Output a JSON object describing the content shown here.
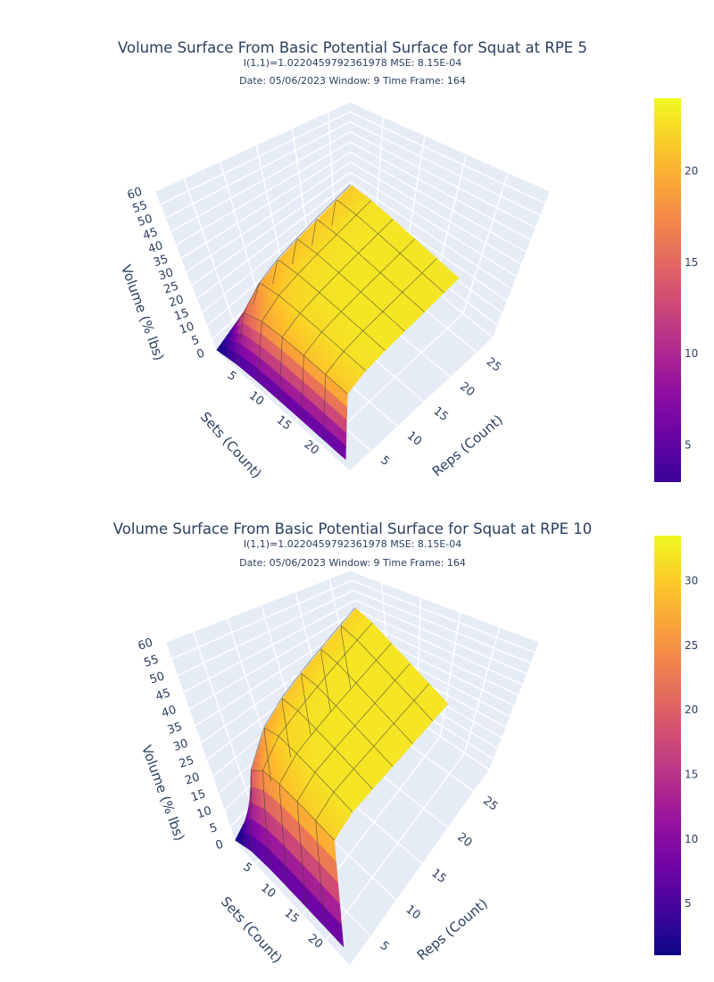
{
  "chart_data": [
    {
      "type": "surface",
      "title": "Volume Surface From Basic Potential Surface for Squat at RPE 5",
      "subtitle1": "I(1,1)=1.0220459792361978  MSE: 8.15E-04",
      "subtitle2": "Date: 05/06/2023  Window: 9  Time Frame: 164",
      "xlabel": "Sets (Count)",
      "ylabel": "Reps (Count)",
      "zlabel": "Volume (% lbs)",
      "xticks": [
        "5",
        "10",
        "15",
        "20"
      ],
      "yticks": [
        "5",
        "10",
        "15",
        "20",
        "25"
      ],
      "zticks": [
        "0",
        "5",
        "10",
        "15",
        "20",
        "25",
        "30",
        "35",
        "40",
        "45",
        "50",
        "55",
        "60"
      ],
      "xlim": [
        1,
        25
      ],
      "ylim": [
        1,
        28
      ],
      "zlim": [
        0,
        60
      ],
      "colorbar": {
        "ticks": [
          5,
          10,
          15,
          20
        ],
        "range": [
          1,
          24
        ]
      },
      "colorscale": "plasma",
      "z_plateau": 23,
      "surface_grid": {
        "sets": [
          1,
          5,
          9,
          13,
          17,
          21,
          25
        ],
        "reps": [
          1,
          5,
          9,
          13,
          17,
          21,
          25,
          28
        ],
        "volume": [
          [
            1.0,
            3.0,
            3.8,
            4.0,
            4.1,
            4.1,
            4.1,
            4.1
          ],
          [
            3.0,
            15.0,
            19.0,
            20.5,
            21.0,
            21.2,
            21.3,
            21.3
          ],
          [
            3.8,
            19.0,
            21.5,
            22.2,
            22.5,
            22.6,
            22.7,
            22.7
          ],
          [
            4.0,
            20.5,
            22.2,
            22.7,
            22.9,
            23.0,
            23.0,
            23.0
          ],
          [
            4.1,
            21.0,
            22.5,
            22.9,
            23.0,
            23.0,
            23.0,
            23.0
          ],
          [
            4.1,
            21.2,
            22.6,
            23.0,
            23.0,
            23.0,
            23.0,
            23.0
          ],
          [
            4.1,
            21.3,
            22.7,
            23.0,
            23.0,
            23.0,
            23.0,
            23.0
          ]
        ]
      }
    },
    {
      "type": "surface",
      "title": "Volume Surface From Basic Potential Surface for Squat at RPE 10",
      "subtitle1": "I(1,1)=1.0220459792361978  MSE: 8.15E-04",
      "subtitle2": "Date: 05/06/2023  Window: 9  Time Frame: 164",
      "xlabel": "Sets (Count)",
      "ylabel": "Reps (Count)",
      "zlabel": "Volume (% lbs)",
      "xticks": [
        "5",
        "10",
        "15",
        "20"
      ],
      "yticks": [
        "5",
        "10",
        "15",
        "20",
        "25"
      ],
      "zticks": [
        "0",
        "5",
        "10",
        "15",
        "20",
        "25",
        "30",
        "35",
        "40",
        "45",
        "50",
        "55",
        "60"
      ],
      "xlim": [
        1,
        25
      ],
      "ylim": [
        1,
        28
      ],
      "zlim": [
        0,
        60
      ],
      "colorbar": {
        "ticks": [
          5,
          10,
          15,
          20,
          25,
          30
        ],
        "range": [
          1,
          33.5
        ]
      },
      "colorscale": "plasma",
      "z_plateau": 32,
      "surface_grid": {
        "sets": [
          1,
          5,
          9,
          13,
          17,
          21,
          25
        ],
        "reps": [
          1,
          5,
          9,
          13,
          17,
          21,
          25,
          28
        ],
        "volume": [
          [
            1.0,
            4.0,
            5.0,
            5.3,
            5.4,
            5.5,
            5.5,
            5.5
          ],
          [
            4.0,
            21.0,
            27.0,
            29.0,
            29.8,
            30.2,
            30.4,
            30.5
          ],
          [
            5.0,
            27.0,
            30.5,
            31.3,
            31.7,
            31.9,
            32.0,
            32.0
          ],
          [
            5.3,
            29.0,
            31.3,
            31.8,
            32.0,
            32.0,
            32.0,
            32.0
          ],
          [
            5.4,
            29.8,
            31.7,
            32.0,
            32.0,
            32.0,
            32.0,
            32.0
          ],
          [
            5.5,
            30.2,
            31.9,
            32.0,
            32.0,
            32.0,
            32.0,
            32.0
          ],
          [
            5.5,
            30.4,
            32.0,
            32.0,
            32.0,
            32.0,
            32.0,
            32.0
          ]
        ]
      }
    }
  ]
}
